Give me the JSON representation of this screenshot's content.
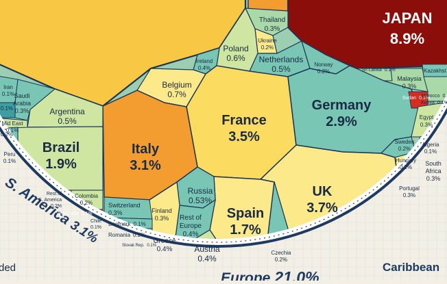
{
  "chart_data": {
    "type": "voronoi treemap",
    "title": "",
    "palette": {
      "background": "#f3efe4",
      "grid": "#d9e2ec",
      "ring": "#1e3a60",
      "cell_border": "#1c3557",
      "text_dark": "#1a2a44",
      "text_light": "#ffffff",
      "usa_yellow": "#f8c845",
      "dark_red": "#8b0e0a",
      "orange": "#f39c2f",
      "yellow": "#fcdc60",
      "light_yellow": "#fbe98a",
      "light_green": "#cfe6a2",
      "green": "#a9d9a6",
      "teal": "#79c6b5",
      "deep_teal": "#3f9ea0",
      "red": "#d62d20"
    },
    "regions": [
      {
        "name": "Europe",
        "value": 21.0,
        "label": "Europe 21.0%"
      },
      {
        "name": "S. America",
        "value": 3.1,
        "label": "S. America 3.1%"
      },
      {
        "name": "Caribbean",
        "label": "Caribbean"
      }
    ],
    "background_texts": [
      "ded"
    ],
    "cells": [
      {
        "id": "japan",
        "name": "JAPAN",
        "value": 8.9,
        "label": "8.9%",
        "color": "dark_red"
      },
      {
        "id": "france",
        "name": "France",
        "value": 3.5,
        "label": "3.5%",
        "color": "yellow"
      },
      {
        "id": "uk",
        "name": "UK",
        "value": 3.7,
        "label": "3.7%",
        "color": "light_yellow"
      },
      {
        "id": "germany",
        "name": "Germany",
        "value": 2.9,
        "label": "2.9%",
        "color": "teal"
      },
      {
        "id": "italy",
        "name": "Italy",
        "value": 3.1,
        "label": "3.1%",
        "color": "orange"
      },
      {
        "id": "brazil",
        "name": "Brazil",
        "value": 1.9,
        "label": "1.9%",
        "color": "light_green"
      },
      {
        "id": "spain",
        "name": "Spain",
        "value": 1.7,
        "label": "1.7%",
        "color": "light_yellow"
      },
      {
        "id": "belgium",
        "name": "Belgium",
        "value": 0.7,
        "label": "0.7%",
        "color": "light_yellow"
      },
      {
        "id": "poland",
        "name": "Poland",
        "value": 0.6,
        "label": "0.6%",
        "color": "light_green"
      },
      {
        "id": "netherlands",
        "name": "Netherlands",
        "value": 0.5,
        "label": "0.5%",
        "color": "teal"
      },
      {
        "id": "argentina",
        "name": "Argentina",
        "value": 0.5,
        "label": "0.5%",
        "color": "light_green"
      },
      {
        "id": "russia",
        "name": "Russia",
        "value": 0.53,
        "label": "0.53%",
        "color": "teal"
      },
      {
        "id": "thailand",
        "name": "Thailand",
        "value": 0.3,
        "label": "0.3%",
        "color": "green"
      },
      {
        "id": "ukraine",
        "name": "Ukraine",
        "value": 0.2,
        "label": "0.2%",
        "color": "light_yellow"
      },
      {
        "id": "ireland",
        "name": "Ireland",
        "value": 0.4,
        "label": "0.4%",
        "color": "teal"
      },
      {
        "id": "norway",
        "name": "Norway",
        "value": 0.2,
        "label": "0.2%",
        "color": "teal"
      },
      {
        "id": "malaysia",
        "name": "Malaysia",
        "value": 0.3,
        "label": "0.3%",
        "color": "green"
      },
      {
        "id": "kazakhstan",
        "name": "Kazakhst",
        "value": null,
        "label": "",
        "color": "teal"
      },
      {
        "id": "srilanka",
        "name": "Sri Lanka",
        "value": 0.1,
        "label": "0.1%",
        "color": "green"
      },
      {
        "id": "sudan",
        "name": "Sudan",
        "value": 0.1,
        "label": "0.1%",
        "color": "red"
      },
      {
        "id": "morocco",
        "name": "Morocco",
        "value": 0.1,
        "label": "0.1%",
        "color": "green"
      },
      {
        "id": "kenya",
        "name": "Kenya",
        "value": 0.1,
        "label": "0.1%",
        "color": "green"
      },
      {
        "id": "egypt",
        "name": "Egypt",
        "value": 0.3,
        "label": "0.3%",
        "color": "light_green"
      },
      {
        "id": "algeria",
        "name": "Algeria",
        "value": 0.1,
        "label": "0.1%",
        "color": "light_green"
      },
      {
        "id": "southafrica",
        "name": "South Africa",
        "value": 0.3,
        "label": "0.3%",
        "color": "green"
      },
      {
        "id": "sweden",
        "name": "Sweden",
        "value": 0.2,
        "label": "0.2%",
        "color": "teal"
      },
      {
        "id": "hungary",
        "name": "Hungary",
        "value": 0.2,
        "label": "0.2%",
        "color": "light_yellow"
      },
      {
        "id": "portugal",
        "name": "Portugal",
        "value": 0.3,
        "label": "0.3%",
        "color": "light_yellow"
      },
      {
        "id": "czechia",
        "name": "Czechia",
        "value": 0.2,
        "label": "0.2%",
        "color": "teal"
      },
      {
        "id": "austria",
        "name": "Austria",
        "value": 0.4,
        "label": "0.4%",
        "color": "light_green"
      },
      {
        "id": "restofeurope",
        "name": "Rest of Europe",
        "value": 0.4,
        "label": "0.4%",
        "color": "teal"
      },
      {
        "id": "finland",
        "name": "Finland",
        "value": 0.3,
        "label": "0.3%",
        "color": "light_yellow"
      },
      {
        "id": "greece",
        "name": "Greece",
        "value": 0.4,
        "label": "0.4%",
        "color": "orange"
      },
      {
        "id": "switzerland",
        "name": "Switzerland",
        "value": 0.3,
        "label": "0.3%",
        "color": "teal"
      },
      {
        "id": "denmark",
        "name": "Denmark",
        "value": 0.1,
        "label": "0.1%",
        "color": "teal"
      },
      {
        "id": "romania",
        "name": "Romania",
        "value": 0.2,
        "label": "0.2%",
        "color": "teal"
      },
      {
        "id": "slovakrep",
        "name": "Slovak Rep.",
        "value": 0.1,
        "label": "0.1%",
        "color": "teal"
      },
      {
        "id": "venezuela",
        "name": "Venezuela",
        "value": 0.1,
        "label": "0.1%",
        "color": "red"
      },
      {
        "id": "chile",
        "name": "Chile",
        "value": 0.1,
        "label": "0.1%",
        "color": "teal"
      },
      {
        "id": "peru",
        "name": "Peru",
        "value": 0.1,
        "label": "0.1%",
        "color": "teal"
      },
      {
        "id": "colombia",
        "name": "Colombia",
        "value": 0.2,
        "label": "0.2%",
        "color": "light_green"
      },
      {
        "id": "restofsamerica",
        "name": "Rest of S. America",
        "value": 0.2,
        "label": "0.2%",
        "color": "light_green"
      },
      {
        "id": "iran",
        "name": "Iran",
        "value": 0.1,
        "label": "0.1%",
        "color": "teal"
      },
      {
        "id": "saudiarabia",
        "name": "Saudi Arabia",
        "value": 0.3,
        "label": "0.3%",
        "color": "teal"
      },
      {
        "id": "middleeast",
        "name": "Mid East",
        "value": 0.1,
        "label": "0.1%",
        "color": "light_green"
      },
      {
        "id": "me_misc1",
        "name": "",
        "value": 0.2,
        "label": "0.2%",
        "color": "teal"
      },
      {
        "id": "me_misc2",
        "name": "",
        "value": 0.1,
        "label": "0.1%",
        "color": "teal"
      },
      {
        "id": "usa",
        "name": "",
        "value": null,
        "label": "",
        "color": "usa_yellow"
      },
      {
        "id": "topmid",
        "name": "",
        "value": null,
        "label": "",
        "color": "orange"
      }
    ]
  }
}
